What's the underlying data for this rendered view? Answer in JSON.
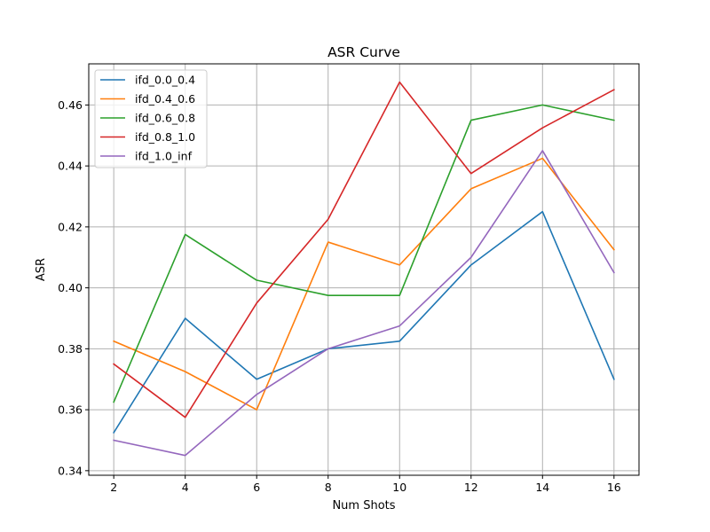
{
  "chart_data": {
    "type": "line",
    "title": "ASR Curve",
    "xlabel": "Num Shots",
    "ylabel": "ASR",
    "x": [
      2,
      4,
      6,
      8,
      10,
      12,
      14,
      16
    ],
    "xticks": [
      "2",
      "4",
      "6",
      "8",
      "10",
      "12",
      "14",
      "16"
    ],
    "yticks": [
      "0.34",
      "0.36",
      "0.38",
      "0.40",
      "0.42",
      "0.44",
      "0.46"
    ],
    "xlim": [
      1.3,
      16.7
    ],
    "ylim": [
      0.3385,
      0.4735
    ],
    "grid": true,
    "legend_placement": "top-left",
    "series": [
      {
        "name": "ifd_0.0_0.4",
        "color": "#1f77b4",
        "values": [
          0.3525,
          0.39,
          0.37,
          0.38,
          0.3825,
          0.4075,
          0.425,
          0.37
        ]
      },
      {
        "name": "ifd_0.4_0.6",
        "color": "#ff7f0e",
        "values": [
          0.3825,
          0.3725,
          0.36,
          0.415,
          0.4075,
          0.4325,
          0.4425,
          0.4125
        ]
      },
      {
        "name": "ifd_0.6_0.8",
        "color": "#2ca02c",
        "values": [
          0.3625,
          0.4175,
          0.4025,
          0.3975,
          0.3975,
          0.455,
          0.46,
          0.455
        ]
      },
      {
        "name": "ifd_0.8_1.0",
        "color": "#d62728",
        "values": [
          0.375,
          0.3575,
          0.395,
          0.4225,
          0.4675,
          0.4375,
          0.4525,
          0.465
        ]
      },
      {
        "name": "ifd_1.0_inf",
        "color": "#9467bd",
        "values": [
          0.35,
          0.345,
          0.365,
          0.38,
          0.3875,
          0.41,
          0.445,
          0.405
        ]
      }
    ]
  }
}
